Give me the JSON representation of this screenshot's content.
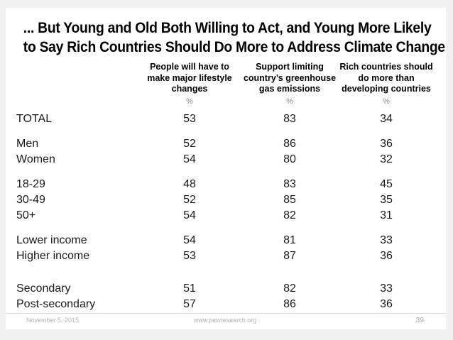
{
  "colors": {
    "canvas_background": "#f1f1f2",
    "slide_background": "#ffffff",
    "title_text": "#000000",
    "body_text": "#1a1a1a",
    "muted_text": "#8c8c8c",
    "footer_text": "#b3b3b3",
    "divider": "#dcdcdc"
  },
  "title": {
    "line1": "... But Young and Old Both Willing to Act, and Young More Likely",
    "line2": "to Say Rich Countries Should Do More to Address Climate Change"
  },
  "table": {
    "columns": [
      {
        "header": "People will have to\nmake major lifestyle\nchanges",
        "unit": "%"
      },
      {
        "header": "Support limiting\ncountry’s greenhouse\ngas emissions",
        "unit": "%"
      },
      {
        "header": "Rich countries should\ndo more than\ndeveloping countries",
        "unit": "%"
      }
    ],
    "groups": [
      {
        "rows": [
          {
            "label": "TOTAL",
            "values": [
              "53",
              "83",
              "34"
            ]
          }
        ]
      },
      {
        "rows": [
          {
            "label": "Men",
            "values": [
              "52",
              "86",
              "36"
            ]
          },
          {
            "label": "Women",
            "values": [
              "54",
              "80",
              "32"
            ]
          }
        ]
      },
      {
        "rows": [
          {
            "label": "18-29",
            "values": [
              "48",
              "83",
              "45"
            ]
          },
          {
            "label": "30-49",
            "values": [
              "52",
              "85",
              "35"
            ]
          },
          {
            "label": "50+",
            "values": [
              "54",
              "82",
              "31"
            ]
          }
        ]
      },
      {
        "rows": [
          {
            "label": "Lower income",
            "values": [
              "54",
              "81",
              "33"
            ]
          },
          {
            "label": "Higher income",
            "values": [
              "53",
              "87",
              "36"
            ]
          }
        ]
      },
      {
        "rows": [
          {
            "label": "Secondary",
            "values": [
              "51",
              "82",
              "33"
            ]
          },
          {
            "label": "Post-secondary",
            "values": [
              "57",
              "86",
              "36"
            ]
          }
        ]
      }
    ]
  },
  "footer": {
    "date": "November 5, 2015",
    "url": "www.pewresearch.org",
    "page_number": "39"
  }
}
